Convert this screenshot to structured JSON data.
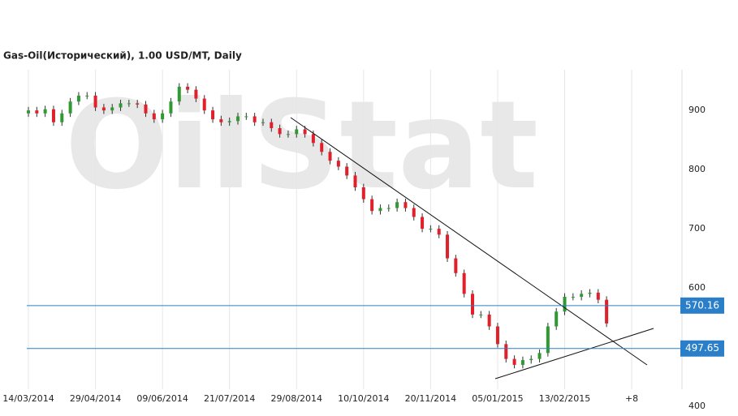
{
  "chart_data": {
    "type": "candlestick",
    "title": "Gas-Oil(Исторический), 1.00 USD/MT, Daily",
    "watermark": "OilStat",
    "categories": [
      "14/03/2014",
      null,
      null,
      null,
      null,
      null,
      null,
      null,
      "29/04/2014",
      null,
      null,
      null,
      null,
      null,
      null,
      null,
      "09/06/2014",
      null,
      null,
      null,
      null,
      null,
      null,
      null,
      "21/07/2014",
      null,
      null,
      null,
      null,
      null,
      null,
      null,
      "29/08/2014",
      null,
      null,
      null,
      null,
      null,
      null,
      null,
      "10/10/2014",
      null,
      null,
      null,
      null,
      null,
      null,
      null,
      "20/11/2014",
      null,
      null,
      null,
      null,
      null,
      null,
      null,
      "05/01/2015",
      null,
      null,
      null,
      null,
      null,
      null,
      null,
      "13/02/2015",
      null,
      null,
      null,
      null,
      null,
      null,
      null,
      "+8"
    ],
    "open": [
      895,
      900,
      895,
      902,
      880,
      895,
      915,
      925,
      925,
      905,
      900,
      905,
      912,
      912,
      910,
      895,
      885,
      895,
      915,
      940,
      935,
      920,
      900,
      885,
      880,
      882,
      890,
      890,
      880,
      880,
      870,
      860,
      860,
      868,
      860,
      845,
      830,
      815,
      805,
      790,
      770,
      750,
      730,
      735,
      735,
      745,
      735,
      720,
      700,
      700,
      690,
      650,
      625,
      590,
      555,
      555,
      535,
      505,
      480,
      470,
      478,
      480,
      490,
      535,
      560,
      585,
      585,
      590,
      592,
      580,
      null,
      null,
      null
    ],
    "high": [
      906,
      906,
      908,
      908,
      901,
      921,
      931,
      931,
      931,
      911,
      911,
      918,
      918,
      918,
      916,
      901,
      901,
      921,
      946,
      946,
      941,
      926,
      906,
      891,
      888,
      896,
      896,
      896,
      886,
      886,
      876,
      866,
      874,
      874,
      866,
      851,
      836,
      821,
      811,
      796,
      776,
      756,
      741,
      741,
      751,
      751,
      741,
      726,
      706,
      706,
      696,
      656,
      631,
      596,
      561,
      561,
      541,
      511,
      486,
      484,
      486,
      496,
      541,
      566,
      591,
      591,
      596,
      598,
      598,
      586,
      null,
      null,
      null
    ],
    "low": [
      889,
      889,
      889,
      874,
      874,
      889,
      909,
      919,
      899,
      894,
      894,
      899,
      906,
      904,
      889,
      879,
      879,
      889,
      909,
      929,
      914,
      894,
      879,
      874,
      874,
      876,
      884,
      874,
      874,
      864,
      854,
      854,
      854,
      854,
      839,
      824,
      809,
      799,
      784,
      764,
      744,
      724,
      724,
      729,
      729,
      729,
      714,
      694,
      694,
      684,
      644,
      619,
      584,
      549,
      549,
      529,
      499,
      474,
      464,
      464,
      472,
      474,
      484,
      529,
      554,
      579,
      579,
      584,
      574,
      534,
      null,
      null,
      null
    ],
    "close": [
      900,
      895,
      902,
      880,
      895,
      915,
      925,
      925,
      905,
      900,
      905,
      912,
      912,
      910,
      895,
      885,
      895,
      915,
      940,
      935,
      920,
      900,
      885,
      880,
      882,
      890,
      890,
      880,
      880,
      870,
      860,
      860,
      868,
      860,
      845,
      830,
      815,
      805,
      790,
      770,
      750,
      730,
      735,
      735,
      745,
      735,
      720,
      700,
      700,
      690,
      650,
      625,
      590,
      555,
      555,
      535,
      505,
      480,
      470,
      478,
      480,
      490,
      535,
      560,
      585,
      585,
      590,
      592,
      580,
      540,
      null,
      null,
      null
    ],
    "up_color": "#2f9a32",
    "down_color": "#e0202b",
    "levels": [
      570.16,
      497.65
    ],
    "level_color": "#2b7fc9",
    "ylim": [
      400,
      966
    ],
    "yticks": [
      400,
      600,
      700,
      800,
      900
    ],
    "grid": "x"
  }
}
